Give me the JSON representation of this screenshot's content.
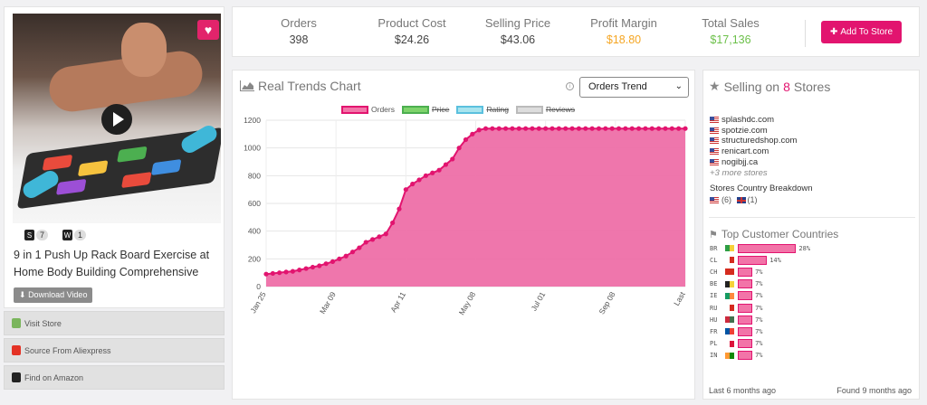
{
  "product": {
    "title": "9 in 1 Push Up Rack Board Exercise at Home Body Building Comprehensive",
    "shopify_count": "7",
    "woo_count": "1",
    "download_label": "Download Video"
  },
  "side_buttons": [
    {
      "label": "Visit Store",
      "icon": "shopify-icon",
      "color": "#7ab55c"
    },
    {
      "label": "Source From Aliexpress",
      "icon": "aliexpress-icon",
      "color": "#e43225"
    },
    {
      "label": "Find on Amazon",
      "icon": "amazon-icon",
      "color": "#222222"
    }
  ],
  "stats": [
    {
      "label": "Orders",
      "value": "398",
      "color": "#444444"
    },
    {
      "label": "Product Cost",
      "value": "$24.26",
      "color": "#444444"
    },
    {
      "label": "Selling Price",
      "value": "$43.06",
      "color": "#444444"
    },
    {
      "label": "Profit Margin",
      "value": "$18.80",
      "color": "#f5a623"
    },
    {
      "label": "Total Sales",
      "value": "$17,136",
      "color": "#6cc04a"
    }
  ],
  "add_to_store_label": "Add To Store",
  "trends": {
    "title": "Real Trends Chart",
    "select_value": "Orders Trend"
  },
  "chart_data": {
    "type": "area",
    "legend": [
      {
        "name": "Orders",
        "active": true,
        "fill": "#f274a8",
        "stroke": "#e2146f"
      },
      {
        "name": "Price",
        "active": false,
        "fill": "#7ed36b",
        "stroke": "#4caf50"
      },
      {
        "name": "Rating",
        "active": false,
        "fill": "#a8e4ee",
        "stroke": "#5bc0de"
      },
      {
        "name": "Reviews",
        "active": false,
        "fill": "#dddddd",
        "stroke": "#bbbbbb"
      }
    ],
    "x_ticks": [
      "Jan 25",
      "Mar 09",
      "Apr 11",
      "May 08",
      "Jul 01",
      "Sep 08",
      "Last"
    ],
    "ylim": [
      0,
      1200
    ],
    "y_ticks": [
      0,
      200,
      400,
      600,
      800,
      1000,
      1200
    ],
    "series": [
      {
        "name": "Orders",
        "values": [
          90,
          95,
          100,
          105,
          110,
          120,
          130,
          140,
          150,
          165,
          180,
          200,
          220,
          250,
          280,
          320,
          340,
          360,
          380,
          460,
          560,
          700,
          740,
          770,
          800,
          820,
          840,
          880,
          920,
          1000,
          1060,
          1100,
          1130,
          1140,
          1140,
          1140,
          1140,
          1140,
          1140,
          1140,
          1140,
          1140,
          1140,
          1140,
          1140,
          1140,
          1140,
          1140,
          1140,
          1140,
          1140,
          1140,
          1140,
          1140,
          1140,
          1140,
          1140,
          1140,
          1140,
          1140,
          1140,
          1140,
          1140,
          1140
        ]
      }
    ]
  },
  "stores": {
    "title_prefix": "Selling on",
    "count": "8",
    "title_suffix": "Stores",
    "list": [
      "splashdc.com",
      "spotzie.com",
      "structuredshop.com",
      "renicart.com",
      "nogibjj.ca"
    ],
    "more": "+3 more stores",
    "breakdown_title": "Stores Country Breakdown",
    "us_count": "(6)",
    "gb_count": "(1)"
  },
  "customers": {
    "title": "Top Customer Countries",
    "rows": [
      {
        "code": "BR",
        "pct": 28,
        "label": "28%",
        "flag": [
          "#2e9e45",
          "#f6d13a"
        ]
      },
      {
        "code": "CL",
        "pct": 14,
        "label": "14%",
        "flag": [
          "#ffffff",
          "#d52b1e"
        ]
      },
      {
        "code": "CH",
        "pct": 7,
        "label": "7%",
        "flag": [
          "#d52b1e",
          "#d52b1e"
        ]
      },
      {
        "code": "BE",
        "pct": 7,
        "label": "7%",
        "flag": [
          "#222222",
          "#f6d13a"
        ]
      },
      {
        "code": "IE",
        "pct": 7,
        "label": "7%",
        "flag": [
          "#169b62",
          "#ff883e"
        ]
      },
      {
        "code": "RU",
        "pct": 7,
        "label": "7%",
        "flag": [
          "#ffffff",
          "#d52b1e"
        ]
      },
      {
        "code": "HU",
        "pct": 7,
        "label": "7%",
        "flag": [
          "#cd2a3e",
          "#436f4d"
        ]
      },
      {
        "code": "FR",
        "pct": 7,
        "label": "7%",
        "flag": [
          "#0055a4",
          "#ef4135"
        ]
      },
      {
        "code": "PL",
        "pct": 7,
        "label": "7%",
        "flag": [
          "#ffffff",
          "#dc143c"
        ]
      },
      {
        "code": "IN",
        "pct": 7,
        "label": "7%",
        "flag": [
          "#ff9933",
          "#138808"
        ]
      }
    ]
  },
  "footer": {
    "last_label": "Last",
    "last_value": "6 months ago",
    "found_label": "Found",
    "found_value": "9 months ago"
  }
}
